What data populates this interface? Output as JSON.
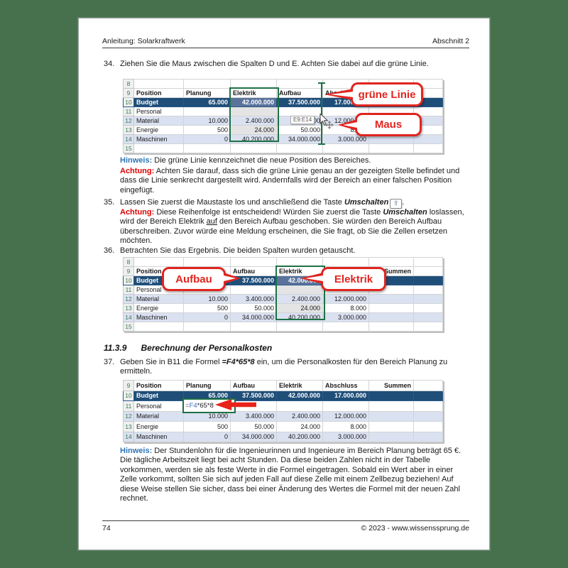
{
  "page": {
    "header": {
      "left": "Anleitung: Solarkraftwerk",
      "right": "Abschnitt 2"
    },
    "footer": {
      "page_number": "74",
      "copyright": "© 2023 - www.wissenssprung.de"
    }
  },
  "labels": {
    "hinweis": "Hinweis:",
    "achtung": "Achtung:",
    "shift_key": "⇧"
  },
  "steps": {
    "s34": {
      "num": "34.",
      "text": "Ziehen Sie die Maus zwischen die Spalten D und E. Achten Sie dabei auf die grüne Linie."
    },
    "s35": {
      "num": "35.",
      "pre": "Lassen Sie zuerst die Maustaste los und anschließend die Taste ",
      "key_word": "Umschalten",
      "post": "."
    },
    "s36": {
      "num": "36.",
      "text": "Betrachten Sie das Ergebnis. Die beiden Spalten wurden getauscht."
    },
    "s37": {
      "num": "37.",
      "pre": "Geben Sie in B11 die Formel ",
      "formula": "=F4*65*8",
      "post": " ein, um die Personalkosten für den Bereich Planung zu ermitteln."
    }
  },
  "notes": {
    "hinweis1": "Die grüne Linie kennzeichnet die neue Position des Bereiches.",
    "achtung1": "Achten Sie darauf, dass sich die grüne Linie genau an der gezeigten Stelle befindet und dass die Linie senkrecht dargestellt wird. Andernfalls wird der Bereich an einer falschen Position eingefügt.",
    "achtung2": {
      "pre": "Diese Reihenfolge ist entscheidend! Würden Sie zuerst die Taste ",
      "bold": "Umschalten",
      "mid": " loslassen, wird der Bereich Elektrik ",
      "underline": "auf",
      "post": " den Bereich Aufbau geschoben. Sie würden den Bereich Aufbau überschreiben. Zuvor würde eine Meldung erscheinen, die Sie fragt, ob Sie die Zellen ersetzen möchten."
    },
    "hinweis2": "Der Stundenlohn für die Ingenieurinnen und Ingenieure im Bereich Planung beträgt 65 €. Die tägliche Arbeitszeit liegt bei acht Stunden. Da diese beiden Zahlen nicht in der Tabelle vorkommen, werden sie als feste Werte in die Formel eingetragen. Sobald ein Wert aber in einer Zelle vorkommt, sollten Sie sich auf jeden Fall auf diese Zelle mit einem Zellbezug beziehen! Auf diese Weise stellen Sie sicher, dass bei einer Änderung des Wertes die Formel mit der neuen Zahl rechnet."
  },
  "section": {
    "number": "11.3.9",
    "title": "Berechnung der Personalkosten"
  },
  "callouts": {
    "gruene_linie": "grüne Linie",
    "maus": "Maus",
    "aufbau": "Aufbau",
    "elektrik": "Elektrik"
  },
  "tooltip": "E9:E14",
  "formula_cell": {
    "eq": "=",
    "ref": "F4",
    "rest": "*65*8"
  },
  "colors": {
    "background_green": "#47714d",
    "callout_red": "#e0251f",
    "excel_green": "#1e7145",
    "budget_row_blue": "#1f4e79",
    "banded_row_blue": "#dae1f1",
    "hinweis_blue": "#2e75b6",
    "achtung_red": "#e00000",
    "arrow_red": "#e8231a"
  },
  "spreadsheets": {
    "t1": {
      "selected_col": 2,
      "right_headers": [
        "Summen"
      ],
      "columns": [
        "Position",
        "Planung",
        "Elektrik",
        "Aufbau",
        "Abschluss",
        "Summen",
        ""
      ],
      "rows": [
        {
          "num": "8",
          "cells": [
            "",
            "",
            "",
            "",
            "",
            "",
            ""
          ]
        },
        {
          "num": "9",
          "type": "header"
        },
        {
          "num": "10",
          "type": "dark",
          "cells": [
            "Budget",
            "65.000",
            "42.000.000",
            "37.500.000",
            "17.000.000",
            "",
            ""
          ]
        },
        {
          "num": "11",
          "cells": [
            "Personal",
            "",
            "",
            "",
            "",
            "",
            ""
          ]
        },
        {
          "num": "12",
          "type": "band",
          "cells": [
            "Material",
            "10.000",
            "2.400.000",
            "3.400.000",
            "12.000.000",
            "",
            ""
          ]
        },
        {
          "num": "13",
          "cells": [
            "Energie",
            "500",
            "24.000",
            "50.000",
            "8.000",
            "",
            ""
          ]
        },
        {
          "num": "14",
          "type": "band",
          "cells": [
            "Maschinen",
            "0",
            "40.200.000",
            "34.000.000",
            "3.000.000",
            "",
            ""
          ]
        },
        {
          "num": "15",
          "cells": [
            "",
            "",
            "",
            "",
            "",
            "",
            ""
          ]
        }
      ]
    },
    "t2": {
      "selected_col": 3,
      "right_headers": [
        "Summen"
      ],
      "columns": [
        "Position",
        "Planung",
        "Aufbau",
        "Elektrik",
        "Abschluss",
        "Summen",
        ""
      ],
      "rows": [
        {
          "num": "8",
          "cells": [
            "",
            "",
            "",
            "",
            "",
            "",
            ""
          ]
        },
        {
          "num": "9",
          "type": "header"
        },
        {
          "num": "10",
          "type": "dark",
          "cells": [
            "Budget",
            "65.000",
            "37.500.000",
            "42.000.000",
            "17.000.000",
            "",
            ""
          ]
        },
        {
          "num": "11",
          "cells": [
            "Personal",
            "",
            "",
            "",
            "",
            "",
            ""
          ]
        },
        {
          "num": "12",
          "type": "band",
          "cells": [
            "Material",
            "10.000",
            "3.400.000",
            "2.400.000",
            "12.000.000",
            "",
            ""
          ]
        },
        {
          "num": "13",
          "cells": [
            "Energie",
            "500",
            "50.000",
            "24.000",
            "8.000",
            "",
            ""
          ]
        },
        {
          "num": "14",
          "type": "band",
          "cells": [
            "Maschinen",
            "0",
            "34.000.000",
            "40.200.000",
            "3.000.000",
            "",
            ""
          ]
        },
        {
          "num": "15",
          "cells": [
            "",
            "",
            "",
            "",
            "",
            "",
            ""
          ]
        }
      ]
    },
    "t3": {
      "right_headers": [
        "Summen"
      ],
      "columns": [
        "Position",
        "Planung",
        "Aufbau",
        "Elektrik",
        "Abschluss",
        "Summen",
        ""
      ],
      "rows": [
        {
          "num": "9",
          "type": "header"
        },
        {
          "num": "10",
          "type": "dark",
          "cells": [
            "Budget",
            "65.000",
            "37.500.000",
            "42.000.000",
            "17.000.000",
            "",
            ""
          ]
        },
        {
          "num": "11",
          "cells": [
            "Personal",
            "",
            "",
            "",
            "",
            "",
            ""
          ]
        },
        {
          "num": "12",
          "type": "band",
          "cells": [
            "Material",
            "10.000",
            "3.400.000",
            "2.400.000",
            "12.000.000",
            "",
            ""
          ]
        },
        {
          "num": "13",
          "cells": [
            "Energie",
            "500",
            "50.000",
            "24.000",
            "8.000",
            "",
            ""
          ]
        },
        {
          "num": "14",
          "type": "band",
          "cells": [
            "Maschinen",
            "0",
            "34.000.000",
            "40.200.000",
            "3.000.000",
            "",
            ""
          ]
        }
      ]
    }
  }
}
